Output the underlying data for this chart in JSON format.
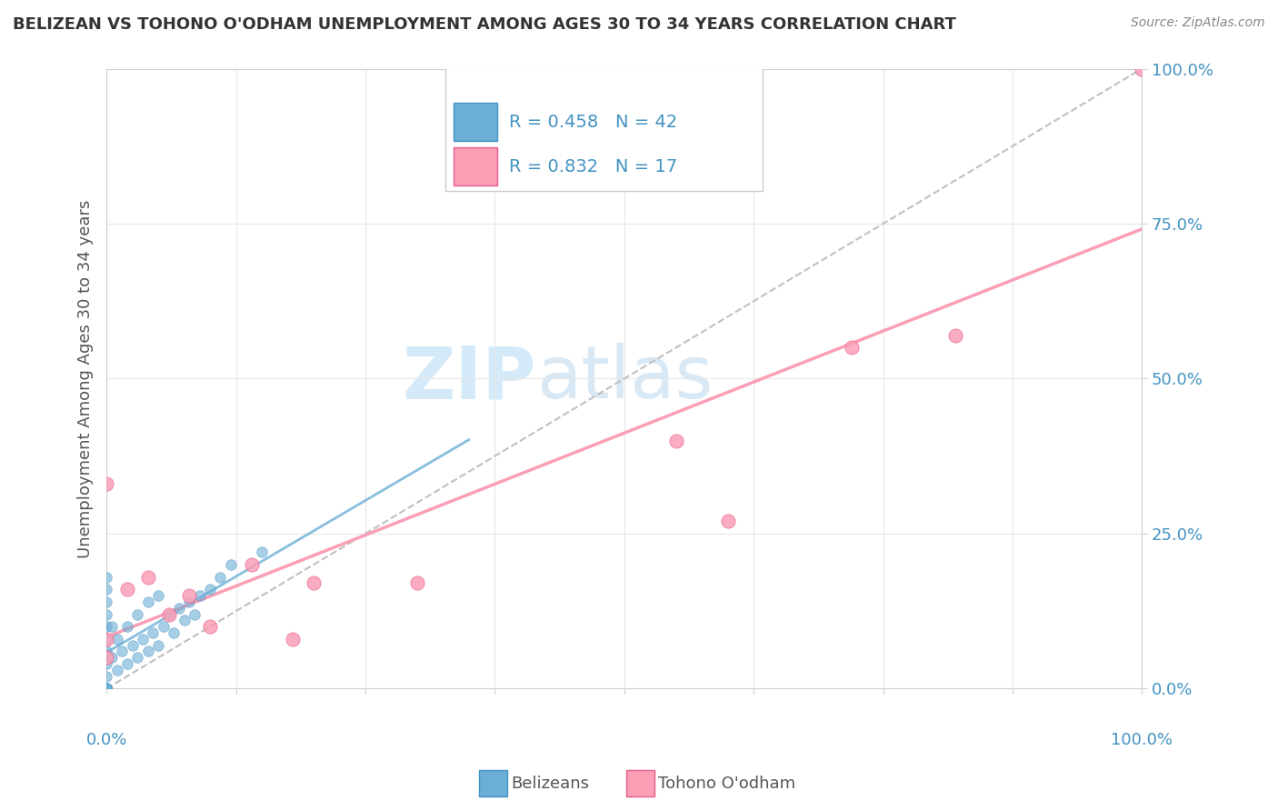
{
  "title": "BELIZEAN VS TOHONO O'ODHAM UNEMPLOYMENT AMONG AGES 30 TO 34 YEARS CORRELATION CHART",
  "source": "Source: ZipAtlas.com",
  "ylabel": "Unemployment Among Ages 30 to 34 years",
  "ytick_values": [
    0,
    25,
    50,
    75,
    100
  ],
  "watermark_zip": "ZIP",
  "watermark_atlas": "atlas",
  "belizean_color": "#6baed6",
  "belizean_edge": "#4393c3",
  "tohono_color": "#fa9fb5",
  "tohono_edge": "#e85d8a",
  "R_belizean": 0.458,
  "N_belizean": 42,
  "R_tohono": 0.832,
  "N_tohono": 17,
  "legend_label_1": "Belizeans",
  "legend_label_2": "Tohono O'odham",
  "belizean_x": [
    0.0,
    0.0,
    0.0,
    0.0,
    0.0,
    0.0,
    0.0,
    0.0,
    0.0,
    0.0,
    0.0,
    0.0,
    0.0,
    0.0,
    0.5,
    0.5,
    1.0,
    1.0,
    1.5,
    2.0,
    2.0,
    2.5,
    3.0,
    3.0,
    3.5,
    4.0,
    4.0,
    4.5,
    5.0,
    5.0,
    5.5,
    6.0,
    6.5,
    7.0,
    7.5,
    8.0,
    8.5,
    9.0,
    10.0,
    11.0,
    12.0,
    15.0
  ],
  "belizean_y": [
    0.0,
    0.0,
    0.0,
    0.0,
    0.0,
    2.0,
    4.0,
    6.0,
    8.0,
    10.0,
    12.0,
    14.0,
    16.0,
    18.0,
    5.0,
    10.0,
    3.0,
    8.0,
    6.0,
    4.0,
    10.0,
    7.0,
    5.0,
    12.0,
    8.0,
    6.0,
    14.0,
    9.0,
    7.0,
    15.0,
    10.0,
    12.0,
    9.0,
    13.0,
    11.0,
    14.0,
    12.0,
    15.0,
    16.0,
    18.0,
    20.0,
    22.0
  ],
  "tohono_x": [
    0.0,
    0.0,
    0.0,
    2.0,
    4.0,
    6.0,
    8.0,
    10.0,
    14.0,
    18.0,
    20.0,
    30.0,
    55.0,
    60.0,
    72.0,
    82.0,
    100.0
  ],
  "tohono_y": [
    33.0,
    5.0,
    8.0,
    16.0,
    18.0,
    12.0,
    15.0,
    10.0,
    20.0,
    8.0,
    17.0,
    17.0,
    40.0,
    27.0,
    55.0,
    57.0,
    100.0
  ]
}
